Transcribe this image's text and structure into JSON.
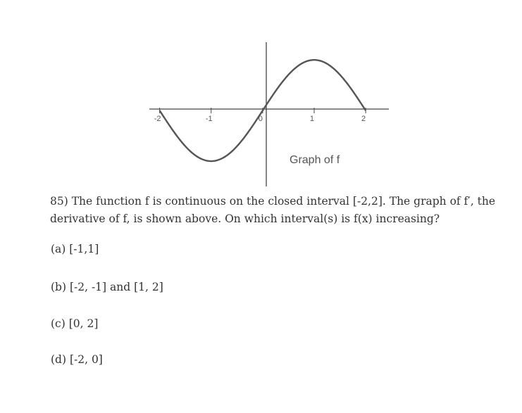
{
  "chart_data": {
    "type": "line",
    "x_ticks": [
      -2,
      -1,
      0,
      1,
      2
    ],
    "tick_labels": [
      "-2",
      "-1",
      "0",
      "1",
      "2"
    ],
    "x": [
      -2,
      -1,
      0,
      1,
      2
    ],
    "y": [
      0,
      -1,
      0,
      1,
      0
    ],
    "xlim": [
      -2.2,
      2.45
    ],
    "ylim": [
      -1.5,
      1.35
    ],
    "grid": false,
    "annotation": "Graph of f",
    "color": "#555555"
  },
  "question": {
    "text": "85) The function f is continuous on the closed interval [-2,2]. The graph of f′, the derivative of f, is shown above. On which interval(s) is f(x) increasing?"
  },
  "choices": [
    {
      "label": "(a) [-1,1]"
    },
    {
      "label": "(b) [-2, -1] and [1, 2]"
    },
    {
      "label": "(c) [0, 2]"
    },
    {
      "label": "(d) [-2, 0]"
    }
  ]
}
